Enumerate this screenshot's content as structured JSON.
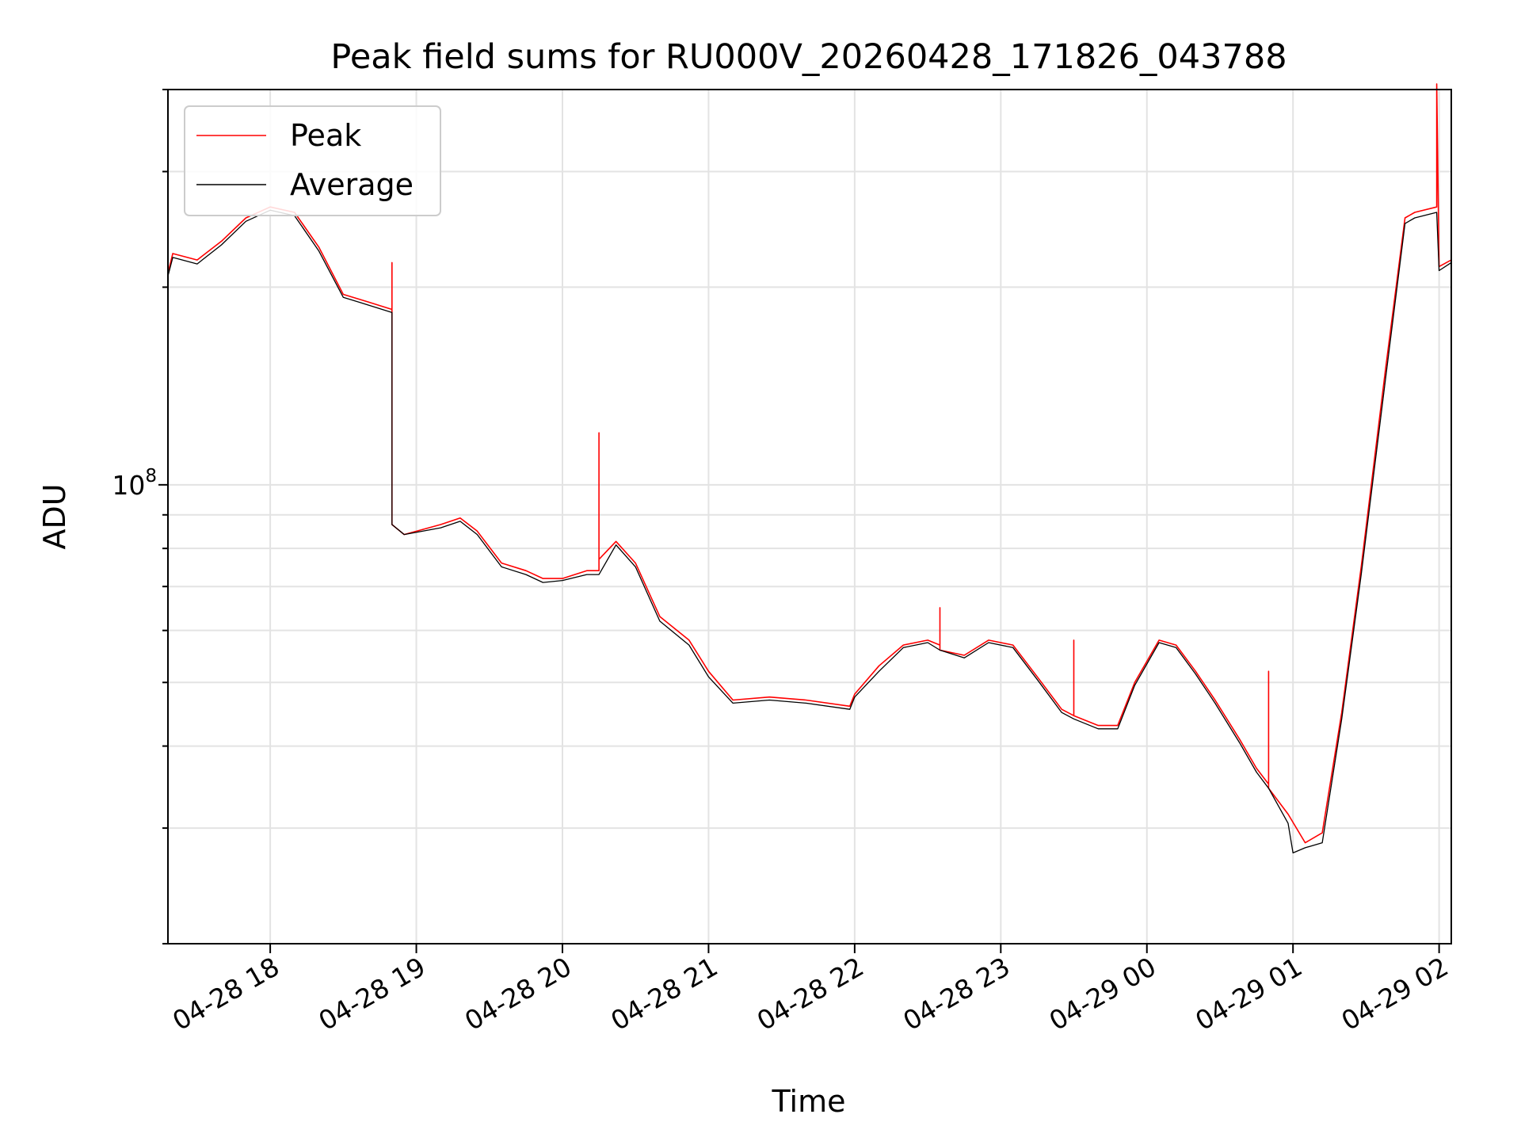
{
  "chart_data": {
    "type": "line",
    "title": "Peak field sums for RU000V_20260428_171826_043788",
    "xlabel": "Time",
    "ylabel": "ADU",
    "yscale": "log",
    "grid": true,
    "legend_position": "top-left",
    "xlim": [
      "2026-04-28 17:18",
      "2026-04-29 02:05"
    ],
    "ylim": [
      20000000,
      400000000
    ],
    "x_tick_labels": [
      "04-28 18",
      "04-28 19",
      "04-28 20",
      "04-28 21",
      "04-28 22",
      "04-28 23",
      "04-29 00",
      "04-29 01",
      "04-29 02"
    ],
    "y_tick_labels": [
      {
        "base": "10",
        "exp": "8",
        "value": 100000000
      }
    ],
    "series": [
      {
        "name": "Peak",
        "color": "#ff0000",
        "x": [
          "2026-04-28 17:18",
          "2026-04-28 17:20",
          "2026-04-28 17:30",
          "2026-04-28 17:40",
          "2026-04-28 17:50",
          "2026-04-28 18:00",
          "2026-04-28 18:10",
          "2026-04-28 18:20",
          "2026-04-28 18:30",
          "2026-04-28 18:40",
          "2026-04-28 18:50",
          "2026-04-28 18:50",
          "2026-04-28 18:50",
          "2026-04-28 18:55",
          "2026-04-28 19:10",
          "2026-04-28 19:18",
          "2026-04-28 19:25",
          "2026-04-28 19:35",
          "2026-04-28 19:45",
          "2026-04-28 19:52",
          "2026-04-28 20:00",
          "2026-04-28 20:10",
          "2026-04-28 20:15",
          "2026-04-28 20:15",
          "2026-04-28 20:15",
          "2026-04-28 20:22",
          "2026-04-28 20:30",
          "2026-04-28 20:40",
          "2026-04-28 20:52",
          "2026-04-28 21:00",
          "2026-04-28 21:10",
          "2026-04-28 21:25",
          "2026-04-28 21:40",
          "2026-04-28 21:58",
          "2026-04-28 22:00",
          "2026-04-28 22:10",
          "2026-04-28 22:20",
          "2026-04-28 22:30",
          "2026-04-28 22:35",
          "2026-04-28 22:35",
          "2026-04-28 22:35",
          "2026-04-28 22:45",
          "2026-04-28 22:55",
          "2026-04-28 23:05",
          "2026-04-28 23:15",
          "2026-04-28 23:25",
          "2026-04-28 23:30",
          "2026-04-28 23:30",
          "2026-04-28 23:30",
          "2026-04-28 23:40",
          "2026-04-28 23:48",
          "2026-04-28 23:55",
          "2026-04-29 00:05",
          "2026-04-29 00:12",
          "2026-04-29 00:20",
          "2026-04-29 00:28",
          "2026-04-29 00:38",
          "2026-04-29 00:45",
          "2026-04-29 00:50",
          "2026-04-29 00:50",
          "2026-04-29 00:50",
          "2026-04-29 00:58",
          "2026-04-29 01:05",
          "2026-04-29 01:12",
          "2026-04-29 01:20",
          "2026-04-29 01:28",
          "2026-04-29 01:38",
          "2026-04-29 01:46",
          "2026-04-29 01:50",
          "2026-04-29 01:59",
          "2026-04-29 01:59",
          "2026-04-29 02:00",
          "2026-04-29 02:05"
        ],
        "y": [
          210000000,
          225000000,
          220000000,
          235000000,
          255000000,
          265000000,
          260000000,
          230000000,
          195000000,
          190000000,
          185000000,
          218000000,
          87000000,
          84000000,
          87000000,
          89000000,
          85000000,
          76000000,
          74000000,
          72000000,
          72000000,
          74000000,
          74000000,
          120000000,
          77000000,
          82000000,
          76000000,
          63000000,
          58000000,
          52000000,
          47000000,
          47500000,
          47000000,
          46000000,
          48000000,
          53000000,
          57000000,
          58000000,
          57000000,
          65000000,
          56000000,
          55000000,
          58000000,
          57000000,
          51000000,
          45500000,
          44500000,
          58000000,
          44500000,
          43000000,
          43000000,
          50000000,
          58000000,
          57000000,
          52000000,
          47000000,
          41000000,
          37000000,
          35000000,
          52000000,
          34500000,
          31500000,
          28500000,
          29500000,
          45000000,
          75000000,
          150000000,
          255000000,
          260000000,
          265000000,
          420000000,
          215000000,
          220000000
        ]
      },
      {
        "name": "Average",
        "color": "#000000",
        "x": [
          "2026-04-28 17:18",
          "2026-04-28 17:20",
          "2026-04-28 17:30",
          "2026-04-28 17:40",
          "2026-04-28 17:50",
          "2026-04-28 18:00",
          "2026-04-28 18:10",
          "2026-04-28 18:20",
          "2026-04-28 18:30",
          "2026-04-28 18:40",
          "2026-04-28 18:50",
          "2026-04-28 18:50",
          "2026-04-28 18:55",
          "2026-04-28 19:10",
          "2026-04-28 19:18",
          "2026-04-28 19:25",
          "2026-04-28 19:35",
          "2026-04-28 19:45",
          "2026-04-28 19:52",
          "2026-04-28 20:00",
          "2026-04-28 20:10",
          "2026-04-28 20:15",
          "2026-04-28 20:22",
          "2026-04-28 20:30",
          "2026-04-28 20:40",
          "2026-04-28 20:52",
          "2026-04-28 21:00",
          "2026-04-28 21:10",
          "2026-04-28 21:25",
          "2026-04-28 21:40",
          "2026-04-28 21:58",
          "2026-04-28 22:00",
          "2026-04-28 22:10",
          "2026-04-28 22:20",
          "2026-04-28 22:30",
          "2026-04-28 22:35",
          "2026-04-28 22:45",
          "2026-04-28 22:55",
          "2026-04-28 23:05",
          "2026-04-28 23:15",
          "2026-04-28 23:25",
          "2026-04-28 23:30",
          "2026-04-28 23:40",
          "2026-04-28 23:48",
          "2026-04-28 23:55",
          "2026-04-29 00:05",
          "2026-04-29 00:12",
          "2026-04-29 00:20",
          "2026-04-29 00:28",
          "2026-04-29 00:38",
          "2026-04-29 00:45",
          "2026-04-29 00:50",
          "2026-04-29 00:58",
          "2026-04-29 01:00",
          "2026-04-29 01:05",
          "2026-04-29 01:12",
          "2026-04-29 01:20",
          "2026-04-29 01:28",
          "2026-04-29 01:38",
          "2026-04-29 01:46",
          "2026-04-29 01:50",
          "2026-04-29 01:59",
          "2026-04-29 02:00",
          "2026-04-29 02:05"
        ],
        "y": [
          208000000,
          222000000,
          217000000,
          232000000,
          252000000,
          262000000,
          257000000,
          227000000,
          193000000,
          188000000,
          183000000,
          87000000,
          84000000,
          86000000,
          88000000,
          84000000,
          75000000,
          73000000,
          71000000,
          71500000,
          73000000,
          73000000,
          81000000,
          75000000,
          62000000,
          57000000,
          51000000,
          46500000,
          47000000,
          46500000,
          45500000,
          47500000,
          52000000,
          56500000,
          57500000,
          56000000,
          54500000,
          57500000,
          56500000,
          50500000,
          45000000,
          44000000,
          42500000,
          42500000,
          49500000,
          57500000,
          56500000,
          51500000,
          46500000,
          40500000,
          36500000,
          34500000,
          30500000,
          27500000,
          28000000,
          28500000,
          44000000,
          73000000,
          145000000,
          250000000,
          255000000,
          260000000,
          212000000,
          218000000
        ]
      }
    ]
  }
}
